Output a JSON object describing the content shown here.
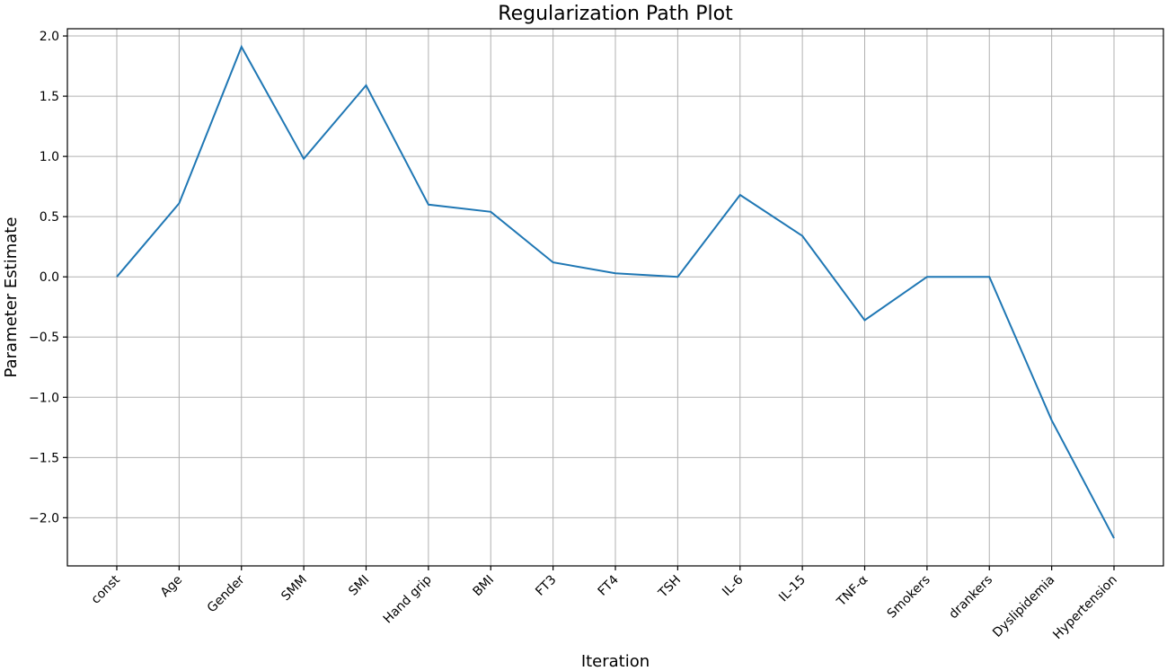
{
  "chart_data": {
    "type": "line",
    "title": "Regularization Path Plot",
    "xlabel": "Iteration",
    "ylabel": "Parameter Estimate",
    "categories": [
      "const",
      "Age",
      "Gender",
      "SMM",
      "SMI",
      "Hand grip",
      "BMI",
      "FT3",
      "FT4",
      "TSH",
      "IL-6",
      "IL-15",
      "TNF-α",
      "Smokers",
      "drankers",
      "Dyslipidemia",
      "Hypertension"
    ],
    "series": [
      {
        "values": [
          0.0,
          0.61,
          1.91,
          0.98,
          1.59,
          0.6,
          0.54,
          0.12,
          0.03,
          0.0,
          0.68,
          0.34,
          -0.36,
          0.0,
          0.0,
          -1.19,
          -2.17
        ],
        "color": "#1f77b4"
      }
    ],
    "ylim": [
      -2.4,
      2.06
    ],
    "yticks": [
      2.0,
      1.5,
      1.0,
      0.5,
      0.0,
      -0.5,
      -1.0,
      -1.5,
      -2.0
    ],
    "ytick_labels": [
      "2.0",
      "1.5",
      "1.0",
      "0.5",
      "0.0",
      "−0.5",
      "−1.0",
      "−1.5",
      "−2.0"
    ],
    "grid": true,
    "legend": "none"
  }
}
